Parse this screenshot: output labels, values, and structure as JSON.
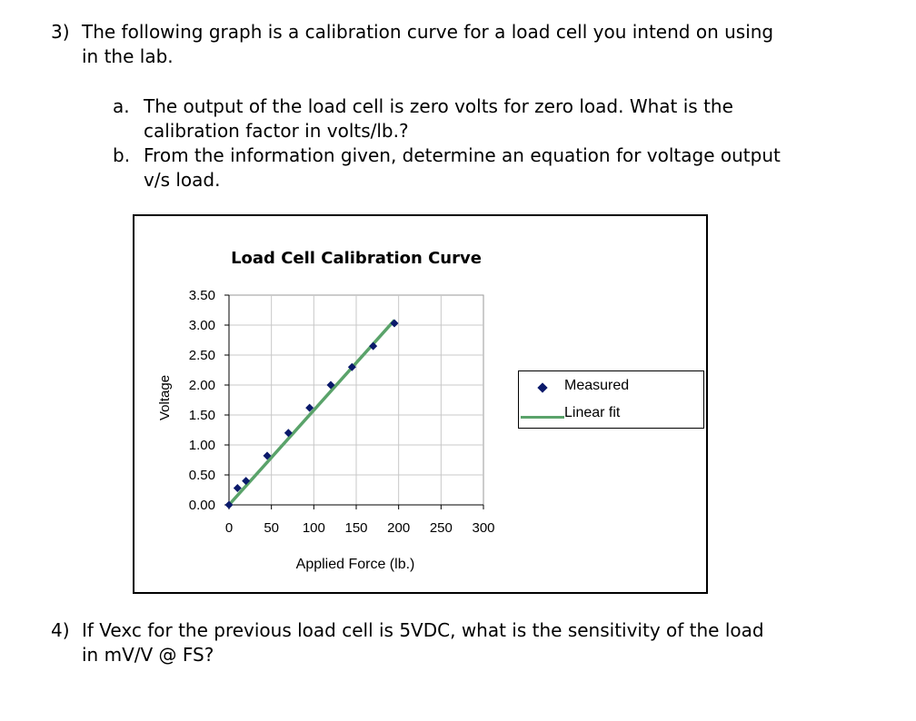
{
  "question3": {
    "number": "3)",
    "line1": "The following graph is a calibration curve for a load cell you intend on using",
    "line2": "in the lab."
  },
  "part_a": {
    "label": "a.",
    "line1": "The output of the load cell is zero volts for zero load. What is the",
    "line2": "calibration factor in volts/lb.?"
  },
  "part_b": {
    "label": "b.",
    "line1": "From the information given, determine an equation for voltage output",
    "line2": "v/s load."
  },
  "question4": {
    "number": "4)",
    "line1": "If Vexc for the previous load cell is 5VDC, what is the sensitivity of the load",
    "line2": "in mV/V @ FS?"
  },
  "chart_data": {
    "type": "scatter",
    "title": "Load Cell Calibration Curve",
    "xlabel": "Applied Force (lb.)",
    "ylabel": "Voltage",
    "xlim": [
      0,
      300
    ],
    "ylim": [
      0,
      3.5
    ],
    "xticks": [
      "0",
      "50",
      "100",
      "150",
      "200",
      "250",
      "300"
    ],
    "yticks": [
      "0.00",
      "0.50",
      "1.00",
      "1.50",
      "2.00",
      "2.50",
      "3.00",
      "3.50"
    ],
    "grid": true,
    "legend_position": "right",
    "series": [
      {
        "name": "Measured",
        "marker": "diamond",
        "color": "#0b1a6b",
        "x": [
          0,
          10,
          20,
          45,
          70,
          95,
          120,
          145,
          170,
          195
        ],
        "y": [
          0.0,
          0.28,
          0.4,
          0.82,
          1.2,
          1.62,
          2.0,
          2.3,
          2.65,
          3.03
        ]
      },
      {
        "name": "Linear fit",
        "line": true,
        "color": "#5aa36a",
        "x": [
          0,
          195
        ],
        "y": [
          0.0,
          3.08
        ]
      }
    ]
  }
}
